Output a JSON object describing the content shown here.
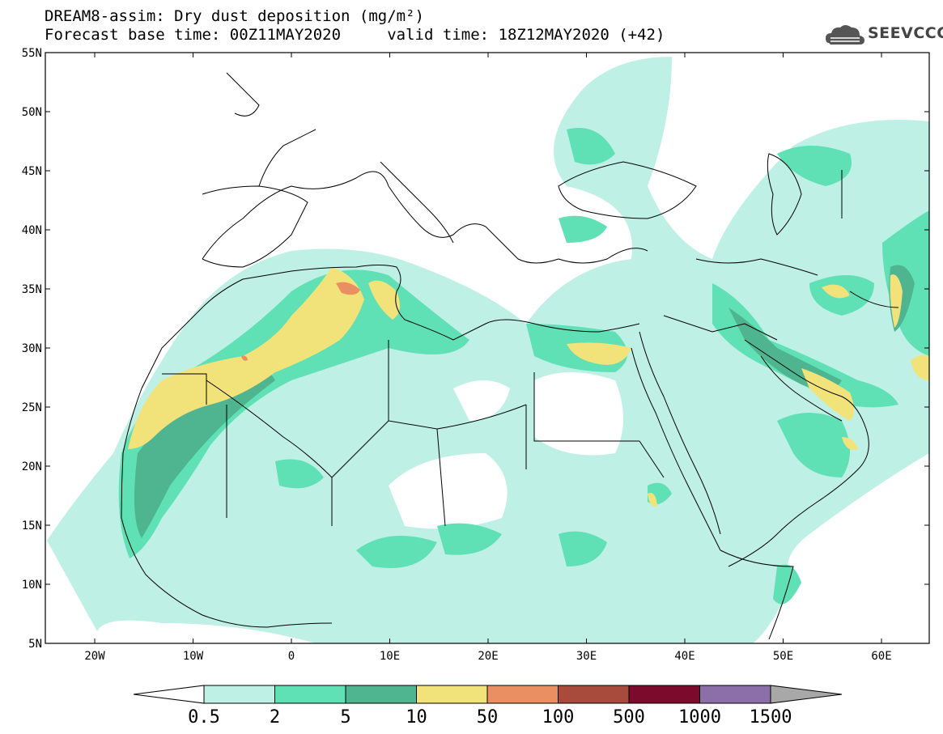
{
  "header": {
    "title_line1": "DREAM8-assim: Dry dust deposition (mg/m²)",
    "title_line2": "Forecast base time: 00Z11MAY2020     valid time: 18Z12MAY2020 (+42)"
  },
  "logo": {
    "text": "SEEVCCC",
    "icon": "cloud-icon"
  },
  "axes": {
    "lat_labels": [
      "55N",
      "50N",
      "45N",
      "40N",
      "35N",
      "30N",
      "25N",
      "20N",
      "15N",
      "10N",
      "5N"
    ],
    "lon_labels": [
      "20W",
      "10W",
      "0",
      "10E",
      "20E",
      "30E",
      "40E",
      "50E",
      "60E"
    ]
  },
  "legend": {
    "levels": [
      "0.5",
      "2",
      "5",
      "10",
      "50",
      "100",
      "500",
      "1000",
      "1500"
    ],
    "colors": [
      "#bff0e6",
      "#5fe0b5",
      "#4fb590",
      "#f2e27a",
      "#ea8f62",
      "#a84a3c",
      "#7b0a2c",
      "#8c6fa8",
      "#a8a8a8"
    ]
  }
}
